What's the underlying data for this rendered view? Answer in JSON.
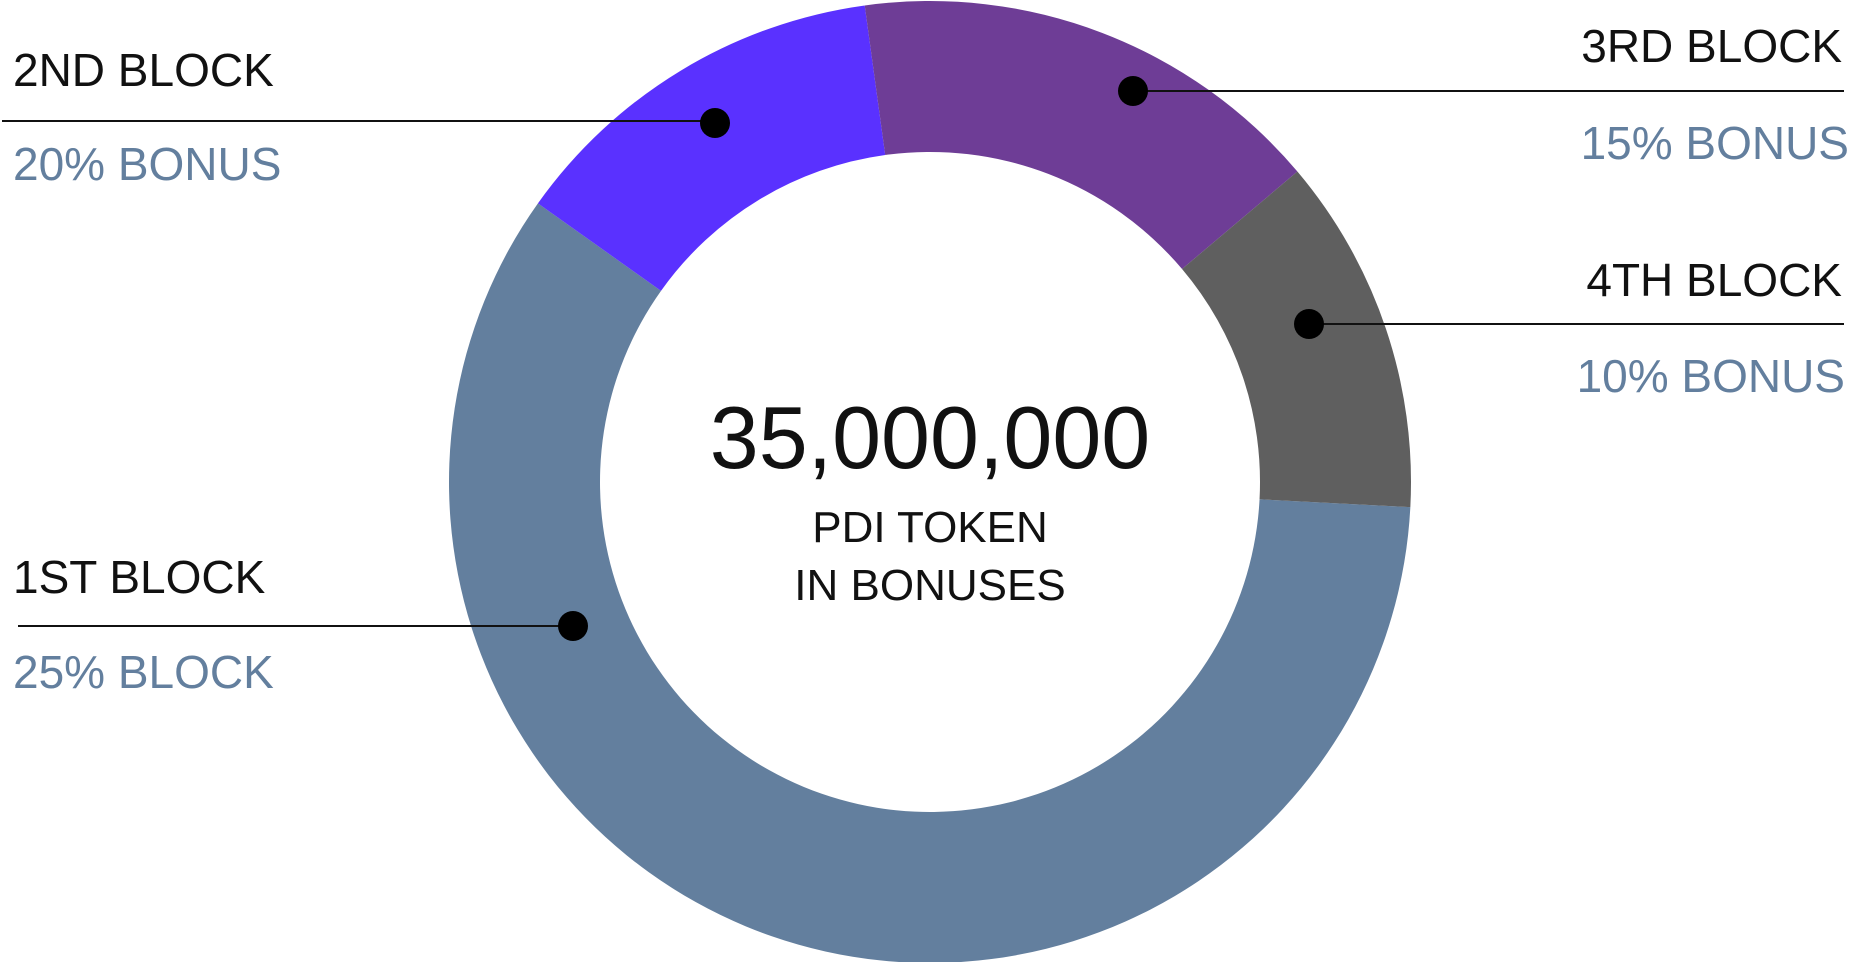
{
  "chart_data": {
    "type": "pie",
    "variant": "donut",
    "categories": [
      "1ST BLOCK",
      "2ND BLOCK",
      "3RD BLOCK",
      "4TH BLOCK"
    ],
    "values": [
      59,
      13,
      16,
      12
    ],
    "colors": [
      "#637f9e",
      "#5a31ff",
      "#6e3d96",
      "#5f5f5f"
    ],
    "segment_labels": [
      {
        "name": "1ST BLOCK",
        "bonus": "25% BLOCK",
        "side": "left"
      },
      {
        "name": "2ND BLOCK",
        "bonus": "20% BONUS",
        "side": "left"
      },
      {
        "name": "3RD BLOCK",
        "bonus": "15% BONUS",
        "side": "right"
      },
      {
        "name": "4TH BLOCK",
        "bonus": "10% BONUS",
        "side": "right"
      }
    ],
    "center": {
      "total": "35,000,000",
      "caption_line1": "PDI TOKEN",
      "caption_line2": "IN BONUSES"
    },
    "bonus_text_color": "#637f9e",
    "title": "",
    "legend": "none"
  }
}
